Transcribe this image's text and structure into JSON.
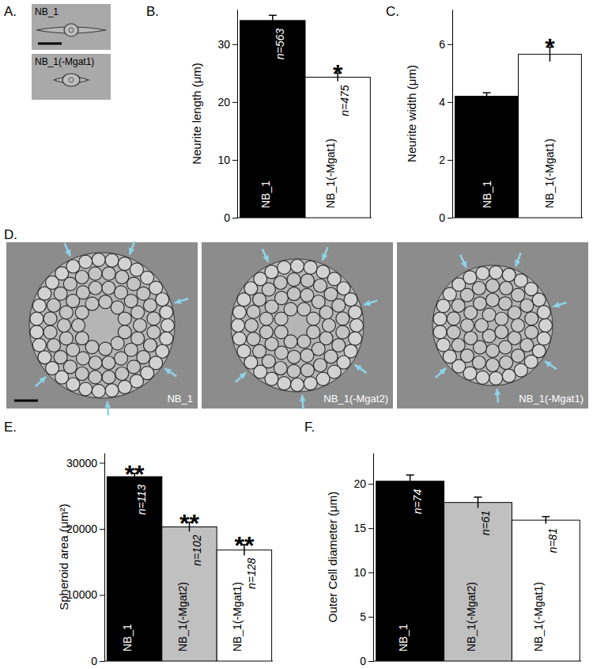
{
  "chart_data": [
    {
      "type": "bar",
      "title": "B.",
      "y_label": "Neurite length (μm)",
      "categories": [
        "NB_1",
        "NB_1(-Mgat1)"
      ],
      "values": [
        34.1,
        24.3
      ],
      "errors": [
        0.9,
        0.7
      ],
      "n_labels": [
        "n=563",
        "n=475"
      ],
      "significance": [
        null,
        "*"
      ],
      "colors": [
        "#000000",
        "#ffffff"
      ],
      "ylim": [
        0,
        36
      ],
      "yticks": [
        0,
        10,
        20,
        30
      ],
      "tick_labels": "y"
    },
    {
      "type": "bar",
      "title": "C.",
      "y_label": "Neurite width (μm)",
      "categories": [
        "NB_1",
        "NB_1(-Mgat1)"
      ],
      "values": [
        4.2,
        5.65
      ],
      "errors": [
        0.12,
        0.25
      ],
      "significance": [
        null,
        "*"
      ],
      "colors": [
        "#000000",
        "#ffffff"
      ],
      "ylim": [
        0,
        7.2
      ],
      "yticks": [
        0,
        2,
        4,
        6
      ],
      "tick_labels": "y"
    },
    {
      "type": "bar",
      "title": "E.",
      "y_label": "Spheroid area (μm²)",
      "categories": [
        "NB_1",
        "NB_1(-Mgat2)",
        "NB_1(-Mgat1)"
      ],
      "values": [
        27900,
        20300,
        16800
      ],
      "errors": [
        500,
        700,
        800
      ],
      "n_labels": [
        "n=113",
        "n=102",
        "n=128"
      ],
      "significance": [
        "**",
        "**",
        "**"
      ],
      "colors": [
        "#000000",
        "#c0c0c0",
        "#ffffff"
      ],
      "ylim": [
        0,
        31500
      ],
      "yticks": [
        0,
        10000,
        20000,
        30000
      ],
      "tick_labels": "y"
    },
    {
      "type": "bar",
      "title": "F.",
      "y_label": "Outer Cell diameter (μm)",
      "categories": [
        "NB_1",
        "NB_1(-Mgat2)",
        "NB_1(-Mgat1)"
      ],
      "values": [
        20.3,
        17.9,
        15.9
      ],
      "errors": [
        0.7,
        0.6,
        0.4
      ],
      "n_labels": [
        "n=74",
        "n=61",
        "n=81"
      ],
      "colors": [
        "#000000",
        "#c0c0c0",
        "#ffffff"
      ],
      "ylim": [
        0,
        23.5
      ],
      "yticks": [
        0,
        5,
        10,
        15,
        20
      ],
      "tick_labels": "y"
    }
  ],
  "images": [
    {
      "label": "A.",
      "frames": [
        "NB_1",
        "NB_1(-Mgat1)"
      ]
    },
    {
      "label": "D.",
      "frames": [
        "NB_1",
        "NB_1(-Mgat2)",
        "NB_1(-Mgat1)"
      ]
    }
  ]
}
